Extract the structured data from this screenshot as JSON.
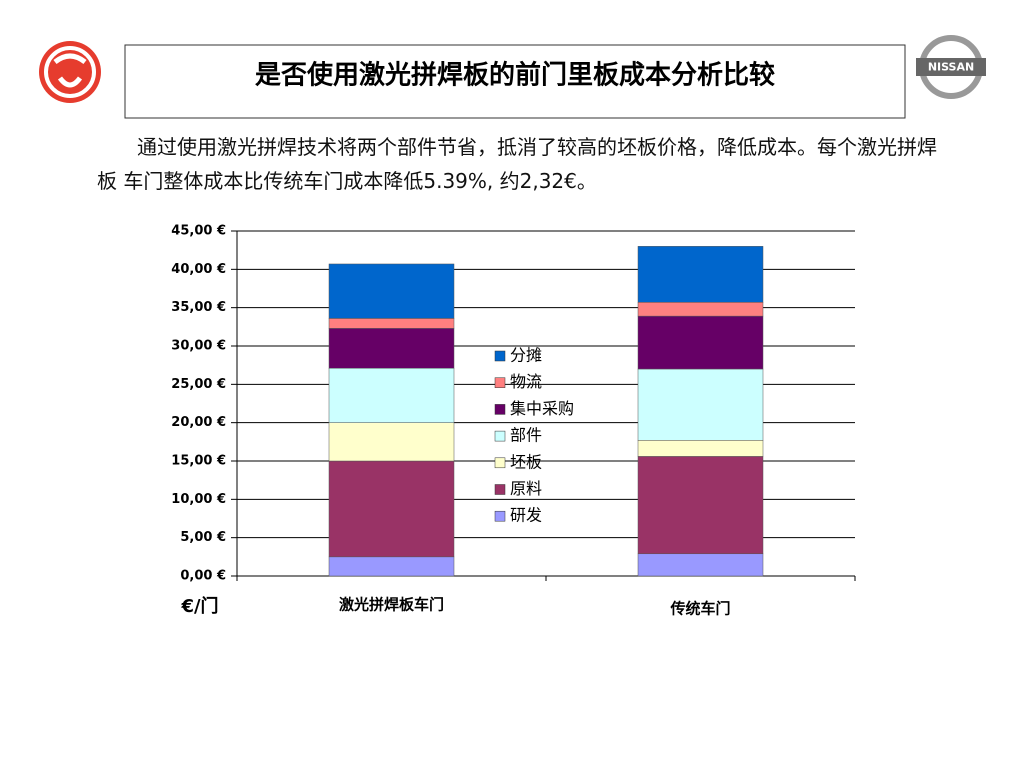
{
  "title": "是否使用激光拼焊板的前门里板成本分析比较",
  "intro": "通过使用激光拼焊技术将两个部件节省，抵消了较高的坯板价格，降低成本。每个激光拼焊板 车门整体成本比传统车门成本降低5.39%, 约2,32€。",
  "logo_text": "NISSAN",
  "chart_data": {
    "type": "stacked_bar",
    "y_label": "€/门",
    "categories": [
      "激光拼焊板车门",
      "传统车门"
    ],
    "series": [
      {
        "name": "研发",
        "color": "#9999ff",
        "values": [
          2.5,
          2.9
        ]
      },
      {
        "name": "原料",
        "color": "#993366",
        "values": [
          12.5,
          12.7
        ]
      },
      {
        "name": "坯板",
        "color": "#ffffcc",
        "values": [
          5.0,
          2.1
        ]
      },
      {
        "name": "部件",
        "color": "#ccffff",
        "values": [
          7.1,
          9.3
        ]
      },
      {
        "name": "集中采购",
        "color": "#660066",
        "values": [
          5.2,
          6.9
        ]
      },
      {
        "name": "物流",
        "color": "#ff8080",
        "values": [
          1.3,
          1.8
        ]
      },
      {
        "name": "分摊",
        "color": "#0066cc",
        "values": [
          7.1,
          7.3
        ]
      }
    ],
    "ylim": [
      0,
      45
    ],
    "yticks": [
      {
        "value": 0,
        "label": "0,00 €"
      },
      {
        "value": 5,
        "label": "5,00 €"
      },
      {
        "value": 10,
        "label": "10,00 €"
      },
      {
        "value": 15,
        "label": "15,00 €"
      },
      {
        "value": 20,
        "label": "20,00 €"
      },
      {
        "value": 25,
        "label": "25,00 €"
      },
      {
        "value": 30,
        "label": "30,00 €"
      },
      {
        "value": 35,
        "label": "35,00 €"
      },
      {
        "value": 40,
        "label": "40,00 €"
      },
      {
        "value": 45,
        "label": "45,00 €"
      }
    ],
    "grid": true
  }
}
